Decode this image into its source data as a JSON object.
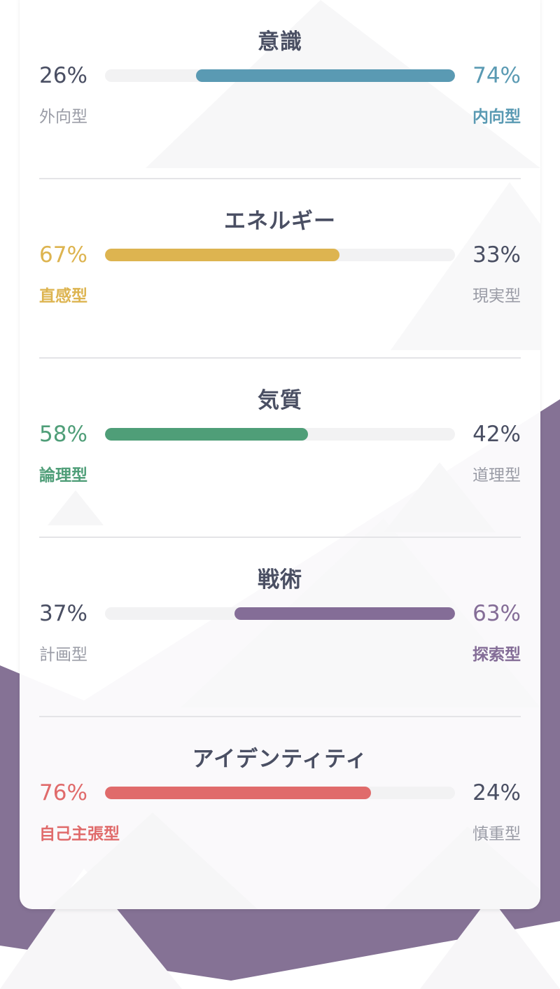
{
  "colors": {
    "blue": "#5a9ab3",
    "yellow": "#ddb450",
    "green": "#4f9e78",
    "purple": "#846d97",
    "red": "#e06b6b",
    "text_dark": "#4a4f63",
    "text_muted": "#9a9ca6",
    "track": "#f2f2f3",
    "background_band": "#857295"
  },
  "sections": [
    {
      "title": "意識",
      "left_percent": "26%",
      "right_percent": "74%",
      "left_trait": "外向型",
      "right_trait": "内向型",
      "dominant_side": "right",
      "dominant_value": 0.74,
      "color": "#5a9ab3"
    },
    {
      "title": "エネルギー",
      "left_percent": "67%",
      "right_percent": "33%",
      "left_trait": "直感型",
      "right_trait": "現実型",
      "dominant_side": "left",
      "dominant_value": 0.67,
      "color": "#ddb450"
    },
    {
      "title": "気質",
      "left_percent": "58%",
      "right_percent": "42%",
      "left_trait": "論理型",
      "right_trait": "道理型",
      "dominant_side": "left",
      "dominant_value": 0.58,
      "color": "#4f9e78"
    },
    {
      "title": "戦術",
      "left_percent": "37%",
      "right_percent": "63%",
      "left_trait": "計画型",
      "right_trait": "探索型",
      "dominant_side": "right",
      "dominant_value": 0.63,
      "color": "#846d97"
    },
    {
      "title": "アイデンティティ",
      "left_percent": "76%",
      "right_percent": "24%",
      "left_trait": "自己主張型",
      "right_trait": "慎重型",
      "dominant_side": "left",
      "dominant_value": 0.76,
      "color": "#e06b6b"
    }
  ]
}
